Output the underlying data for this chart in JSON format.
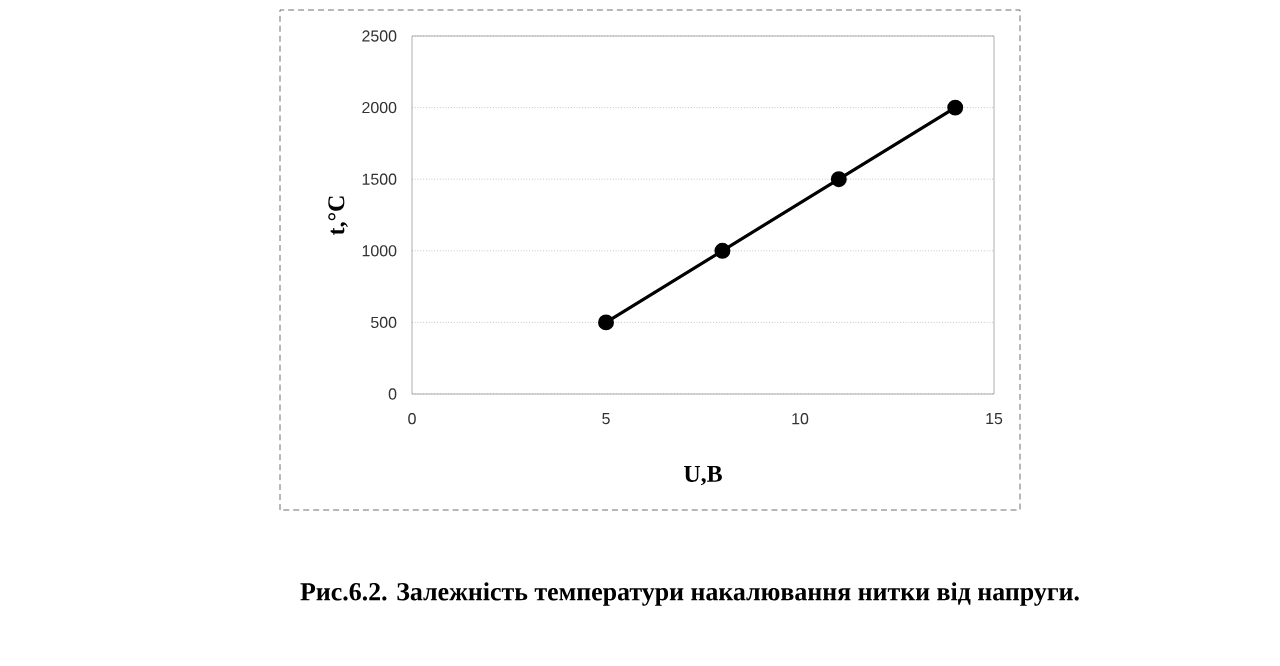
{
  "chart_data": {
    "type": "line",
    "xlabel": "U,B",
    "ylabel": "t,°C",
    "x": [
      5,
      8,
      11,
      14
    ],
    "values": [
      500,
      1000,
      1500,
      2000
    ],
    "color": "#000000",
    "marker": "circle",
    "line_style": "solid",
    "xlim": [
      0,
      15
    ],
    "xticks": [
      0,
      5,
      10,
      15
    ],
    "ylim": [
      0,
      2500
    ],
    "yticks": [
      0,
      500,
      1000,
      1500,
      2000,
      2500
    ],
    "grid": "y",
    "annotations": [
      "Рис.6.2. Залежність температури накалювання нитки від напруги."
    ]
  }
}
